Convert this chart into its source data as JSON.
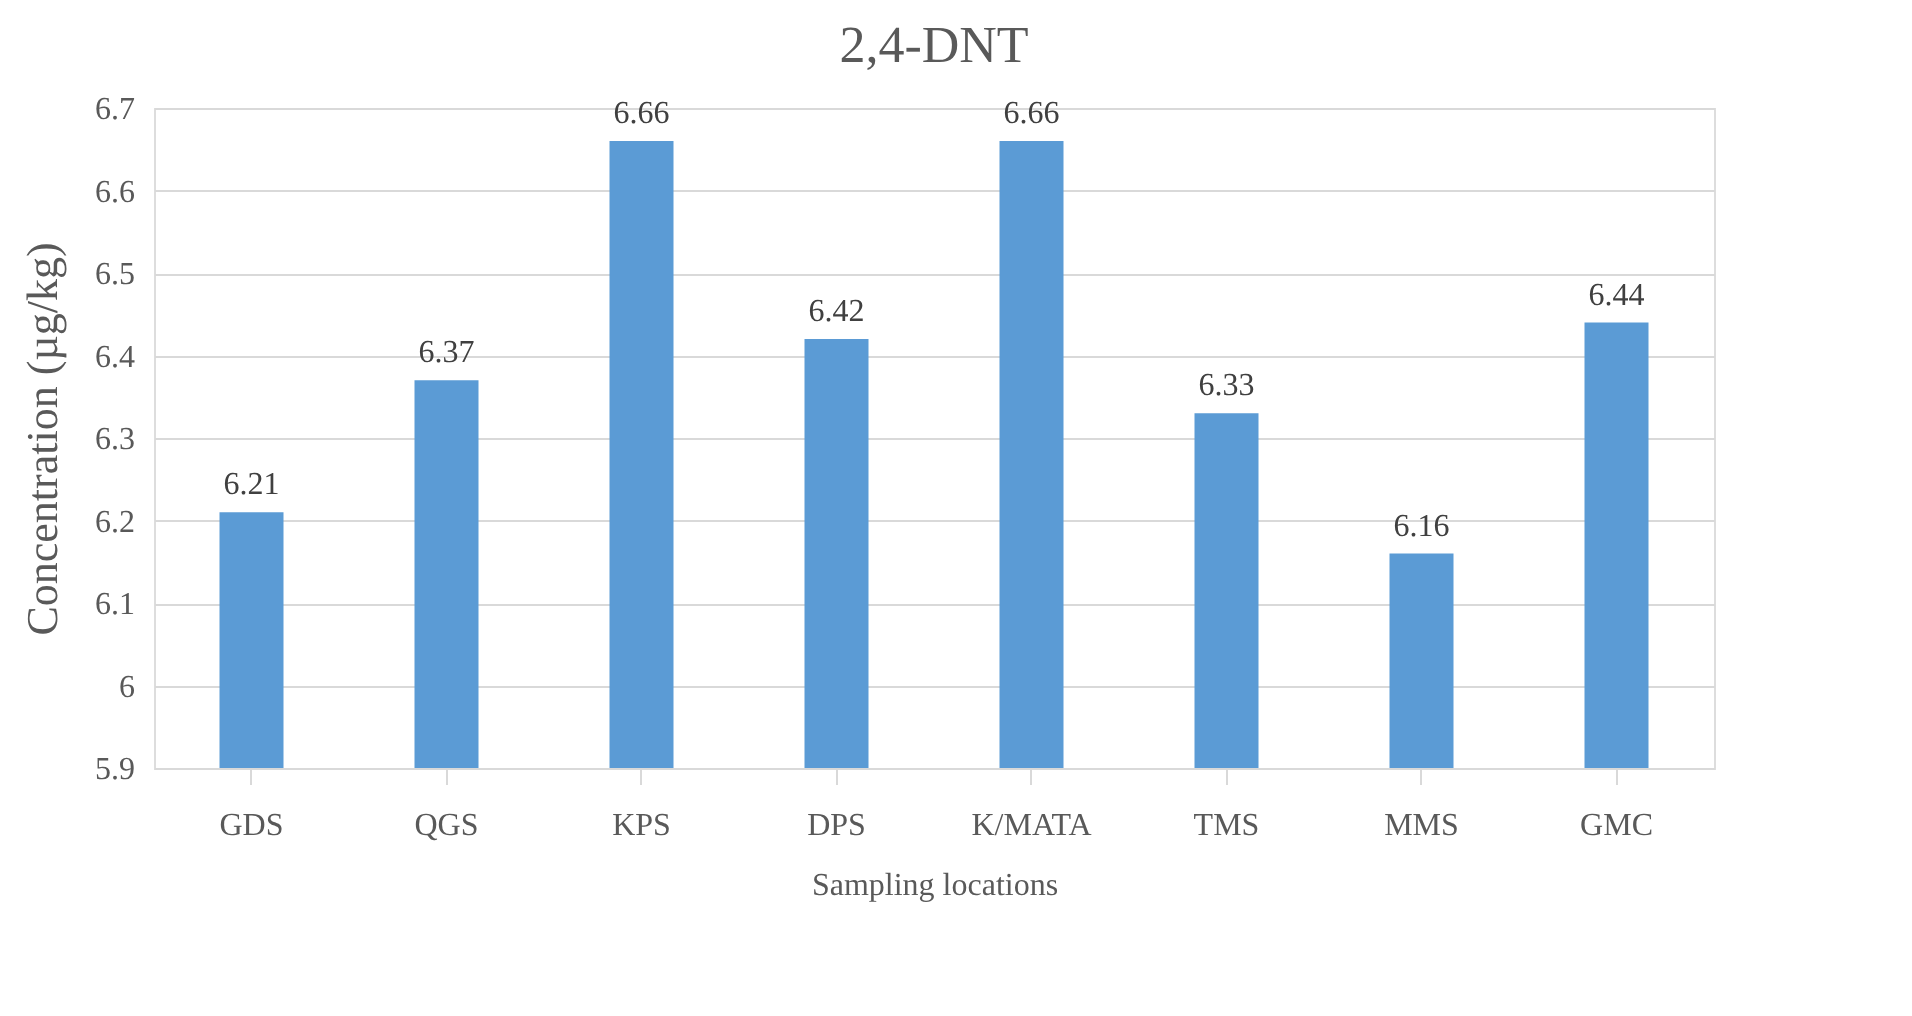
{
  "chart_data": {
    "type": "bar",
    "title": "2,4-DNT",
    "xlabel": "Sampling locations",
    "ylabel": "Concentration (µg/kg)",
    "categories": [
      "GDS",
      "QGS",
      "KPS",
      "DPS",
      "K/MATA",
      "TMS",
      "MMS",
      "GMC"
    ],
    "values": [
      6.21,
      6.37,
      6.66,
      6.42,
      6.66,
      6.33,
      6.16,
      6.44
    ],
    "color": "#5b9bd5",
    "ylim": [
      5.9,
      6.7
    ],
    "yticks": [
      5.9,
      6,
      6.1,
      6.2,
      6.3,
      6.4,
      6.5,
      6.6,
      6.7
    ],
    "grid": "y",
    "data_labels": true
  }
}
